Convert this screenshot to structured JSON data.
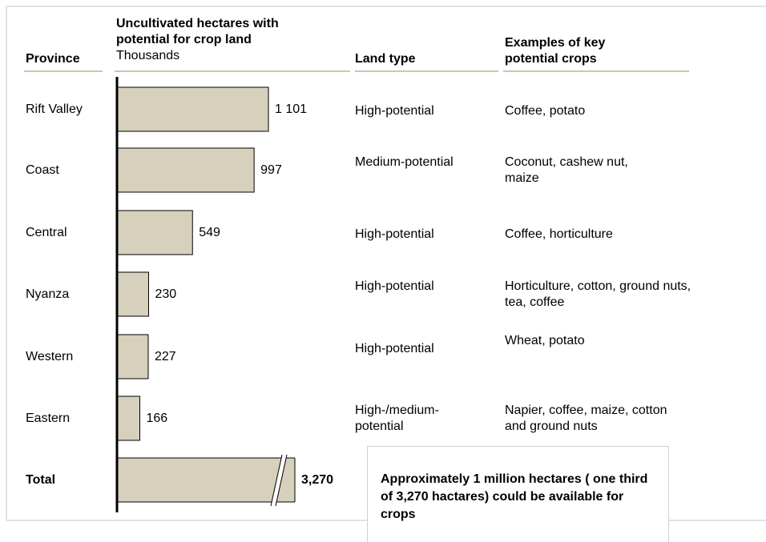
{
  "chart_data": {
    "type": "bar",
    "orientation": "horizontal",
    "headers": {
      "province": "Province",
      "value": "Uncultivated hectares with potential for crop land",
      "value_unit": "Thousands",
      "land_type": "Land type",
      "crops": "Examples of key potential crops"
    },
    "categories": [
      "Rift Valley",
      "Coast",
      "Central",
      "Nyanza",
      "Western",
      "Eastern",
      "Total"
    ],
    "values": [
      1101,
      997,
      549,
      230,
      227,
      166,
      3270
    ],
    "value_labels": [
      "1 101",
      "997",
      "549",
      "230",
      "227",
      "166",
      "3,270"
    ],
    "color": "#d6d0bc",
    "land_types": [
      "High-potential",
      "Medium-potential",
      "High-potential",
      "High-potential",
      "High-potential",
      "High-/medium-potential",
      null
    ],
    "crops": [
      "Coffee, potato",
      "Coconut, cashew nut, maize",
      "Coffee, horticulture",
      "Horticulture, cotton, ground nuts, tea, coffee",
      "Wheat, potato",
      "Napier, coffee, maize, cotton and ground nuts",
      null
    ],
    "annotation": "Approximately 1 million hectares ( one third of 3,270 hactares)  could be available for crops"
  }
}
